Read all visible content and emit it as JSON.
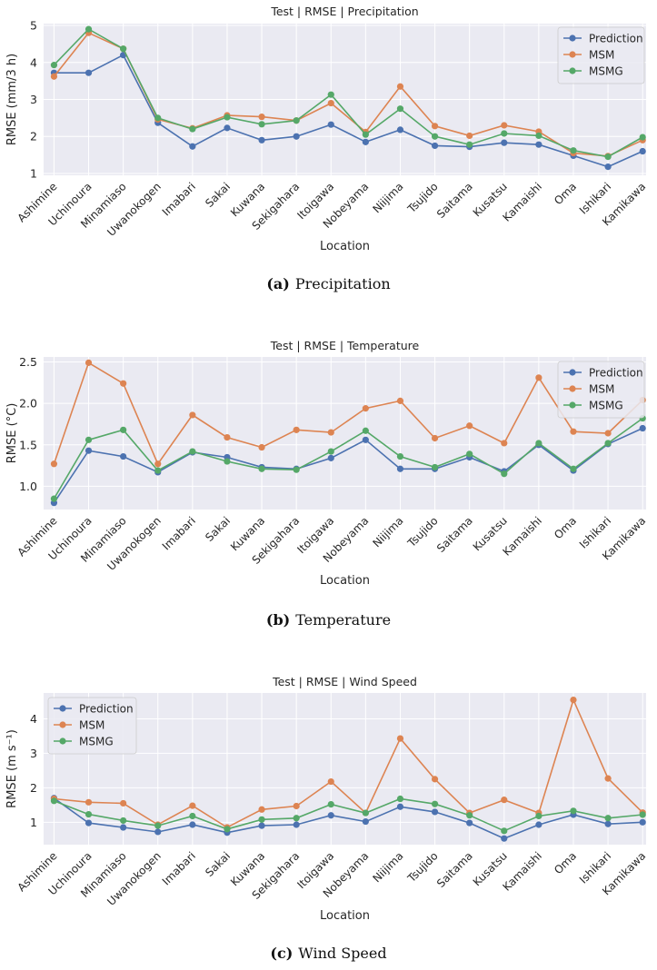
{
  "figure": {
    "locations": [
      "Ashimine",
      "Uchinoura",
      "Minamiaso",
      "Uwanokogen",
      "Imabari",
      "Sakai",
      "Kuwana",
      "Sekigahara",
      "Itoigawa",
      "Nobeyama",
      "Niijima",
      "Tsujido",
      "Saitama",
      "Kusatsu",
      "Kamaishi",
      "Oma",
      "Ishikari",
      "Kamikawa"
    ],
    "series_names": [
      "Prediction",
      "MSM",
      "MSMG"
    ],
    "colors": {
      "Prediction": "#4c72b0",
      "MSM": "#dd8452",
      "MSMG": "#55a868",
      "plot_bg": "#eaeaf2",
      "grid": "#ffffff"
    }
  },
  "chart_data": [
    {
      "type": "line",
      "title": "Test | RMSE | Precipitation",
      "xlabel": "Location",
      "ylabel": "RMSE (mm/3 h)",
      "ylim": [
        0.95,
        5.05
      ],
      "yticks": [
        1,
        2,
        3,
        4,
        5
      ],
      "legend_position": "top-right",
      "caption_label": "(a)",
      "caption_text": "Precipitation",
      "series": [
        {
          "name": "Prediction",
          "values": [
            3.72,
            3.72,
            4.2,
            2.37,
            1.73,
            2.23,
            1.9,
            2.0,
            2.32,
            1.85,
            2.18,
            1.75,
            1.72,
            1.83,
            1.78,
            1.48,
            1.18,
            1.6
          ]
        },
        {
          "name": "MSM",
          "values": [
            3.62,
            4.8,
            4.37,
            2.46,
            2.22,
            2.57,
            2.53,
            2.43,
            2.9,
            2.12,
            3.35,
            2.28,
            2.02,
            2.3,
            2.13,
            1.55,
            1.47,
            1.9
          ]
        },
        {
          "name": "MSMG",
          "values": [
            3.93,
            4.9,
            4.37,
            2.5,
            2.2,
            2.52,
            2.33,
            2.43,
            3.13,
            2.05,
            2.75,
            2.0,
            1.78,
            2.08,
            2.02,
            1.62,
            1.45,
            1.98
          ]
        }
      ]
    },
    {
      "type": "line",
      "title": "Test | RMSE | Temperature",
      "xlabel": "Location",
      "ylabel": "RMSE (°C)",
      "ylim": [
        0.72,
        2.56
      ],
      "yticks": [
        1.0,
        1.5,
        2.0,
        2.5
      ],
      "ytick_labels": [
        "1.0",
        "1.5",
        "2.0",
        "2.5"
      ],
      "legend_position": "top-right",
      "caption_label": "(b)",
      "caption_text": "Temperature",
      "series": [
        {
          "name": "Prediction",
          "values": [
            0.8,
            1.43,
            1.36,
            1.17,
            1.41,
            1.35,
            1.23,
            1.21,
            1.34,
            1.56,
            1.21,
            1.21,
            1.35,
            1.18,
            1.5,
            1.19,
            1.51,
            1.7
          ]
        },
        {
          "name": "MSM",
          "values": [
            1.27,
            2.49,
            2.24,
            1.27,
            1.86,
            1.59,
            1.47,
            1.68,
            1.65,
            1.94,
            2.03,
            1.58,
            1.73,
            1.52,
            2.31,
            1.66,
            1.64,
            2.04
          ]
        },
        {
          "name": "MSMG",
          "values": [
            0.85,
            1.56,
            1.68,
            1.19,
            1.42,
            1.3,
            1.21,
            1.2,
            1.42,
            1.67,
            1.36,
            1.23,
            1.39,
            1.15,
            1.52,
            1.21,
            1.52,
            1.82
          ]
        }
      ]
    },
    {
      "type": "line",
      "title": "Test | RMSE | Wind Speed",
      "xlabel": "Location",
      "ylabel": "RMSE (m s⁻¹)",
      "ylim": [
        0.35,
        4.75
      ],
      "yticks": [
        1,
        2,
        3,
        4
      ],
      "legend_position": "top-left",
      "caption_label": "(c)",
      "caption_text": "Wind Speed",
      "series": [
        {
          "name": "Prediction",
          "values": [
            1.7,
            0.98,
            0.85,
            0.72,
            0.93,
            0.7,
            0.9,
            0.93,
            1.2,
            1.02,
            1.45,
            1.3,
            0.98,
            0.53,
            0.93,
            1.22,
            0.95,
            1.0
          ]
        },
        {
          "name": "MSM",
          "values": [
            1.68,
            1.58,
            1.55,
            0.93,
            1.48,
            0.85,
            1.37,
            1.47,
            2.18,
            1.27,
            3.43,
            2.25,
            1.27,
            1.65,
            1.27,
            4.55,
            2.27,
            1.28
          ]
        },
        {
          "name": "MSMG",
          "values": [
            1.62,
            1.23,
            1.05,
            0.9,
            1.18,
            0.8,
            1.08,
            1.12,
            1.52,
            1.27,
            1.68,
            1.53,
            1.2,
            0.75,
            1.18,
            1.33,
            1.12,
            1.22
          ]
        }
      ]
    }
  ]
}
